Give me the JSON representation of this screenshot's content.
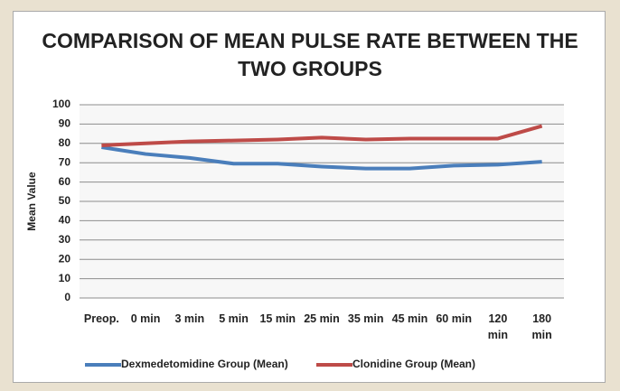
{
  "chart_data": {
    "type": "line",
    "title": "COMPARISON OF MEAN PULSE RATE BETWEEN THE TWO GROUPS",
    "y_label": "Mean Value",
    "categories": [
      "Preop.",
      "0 min",
      "3 min",
      "5 min",
      "15 min",
      "25 min",
      "35 min",
      "45 min",
      "60 min",
      "120 min",
      "180 min"
    ],
    "series": [
      {
        "name": "Dexmedetomidine Group (Mean)",
        "color": "#4a7ebb",
        "values": [
          78,
          74.5,
          72.5,
          69.5,
          69.5,
          68,
          67,
          67,
          68.5,
          69,
          70.5
        ]
      },
      {
        "name": "Clonidine Group (Mean)",
        "color": "#be4b48",
        "values": [
          79,
          80,
          81,
          81.5,
          82,
          83,
          82,
          82.5,
          82.5,
          82.5,
          89
        ]
      }
    ],
    "ylim": [
      0,
      100
    ],
    "yticks": [
      0,
      10,
      20,
      30,
      40,
      50,
      60,
      70,
      80,
      90,
      100
    ],
    "grid": true,
    "legend": "bottom"
  }
}
